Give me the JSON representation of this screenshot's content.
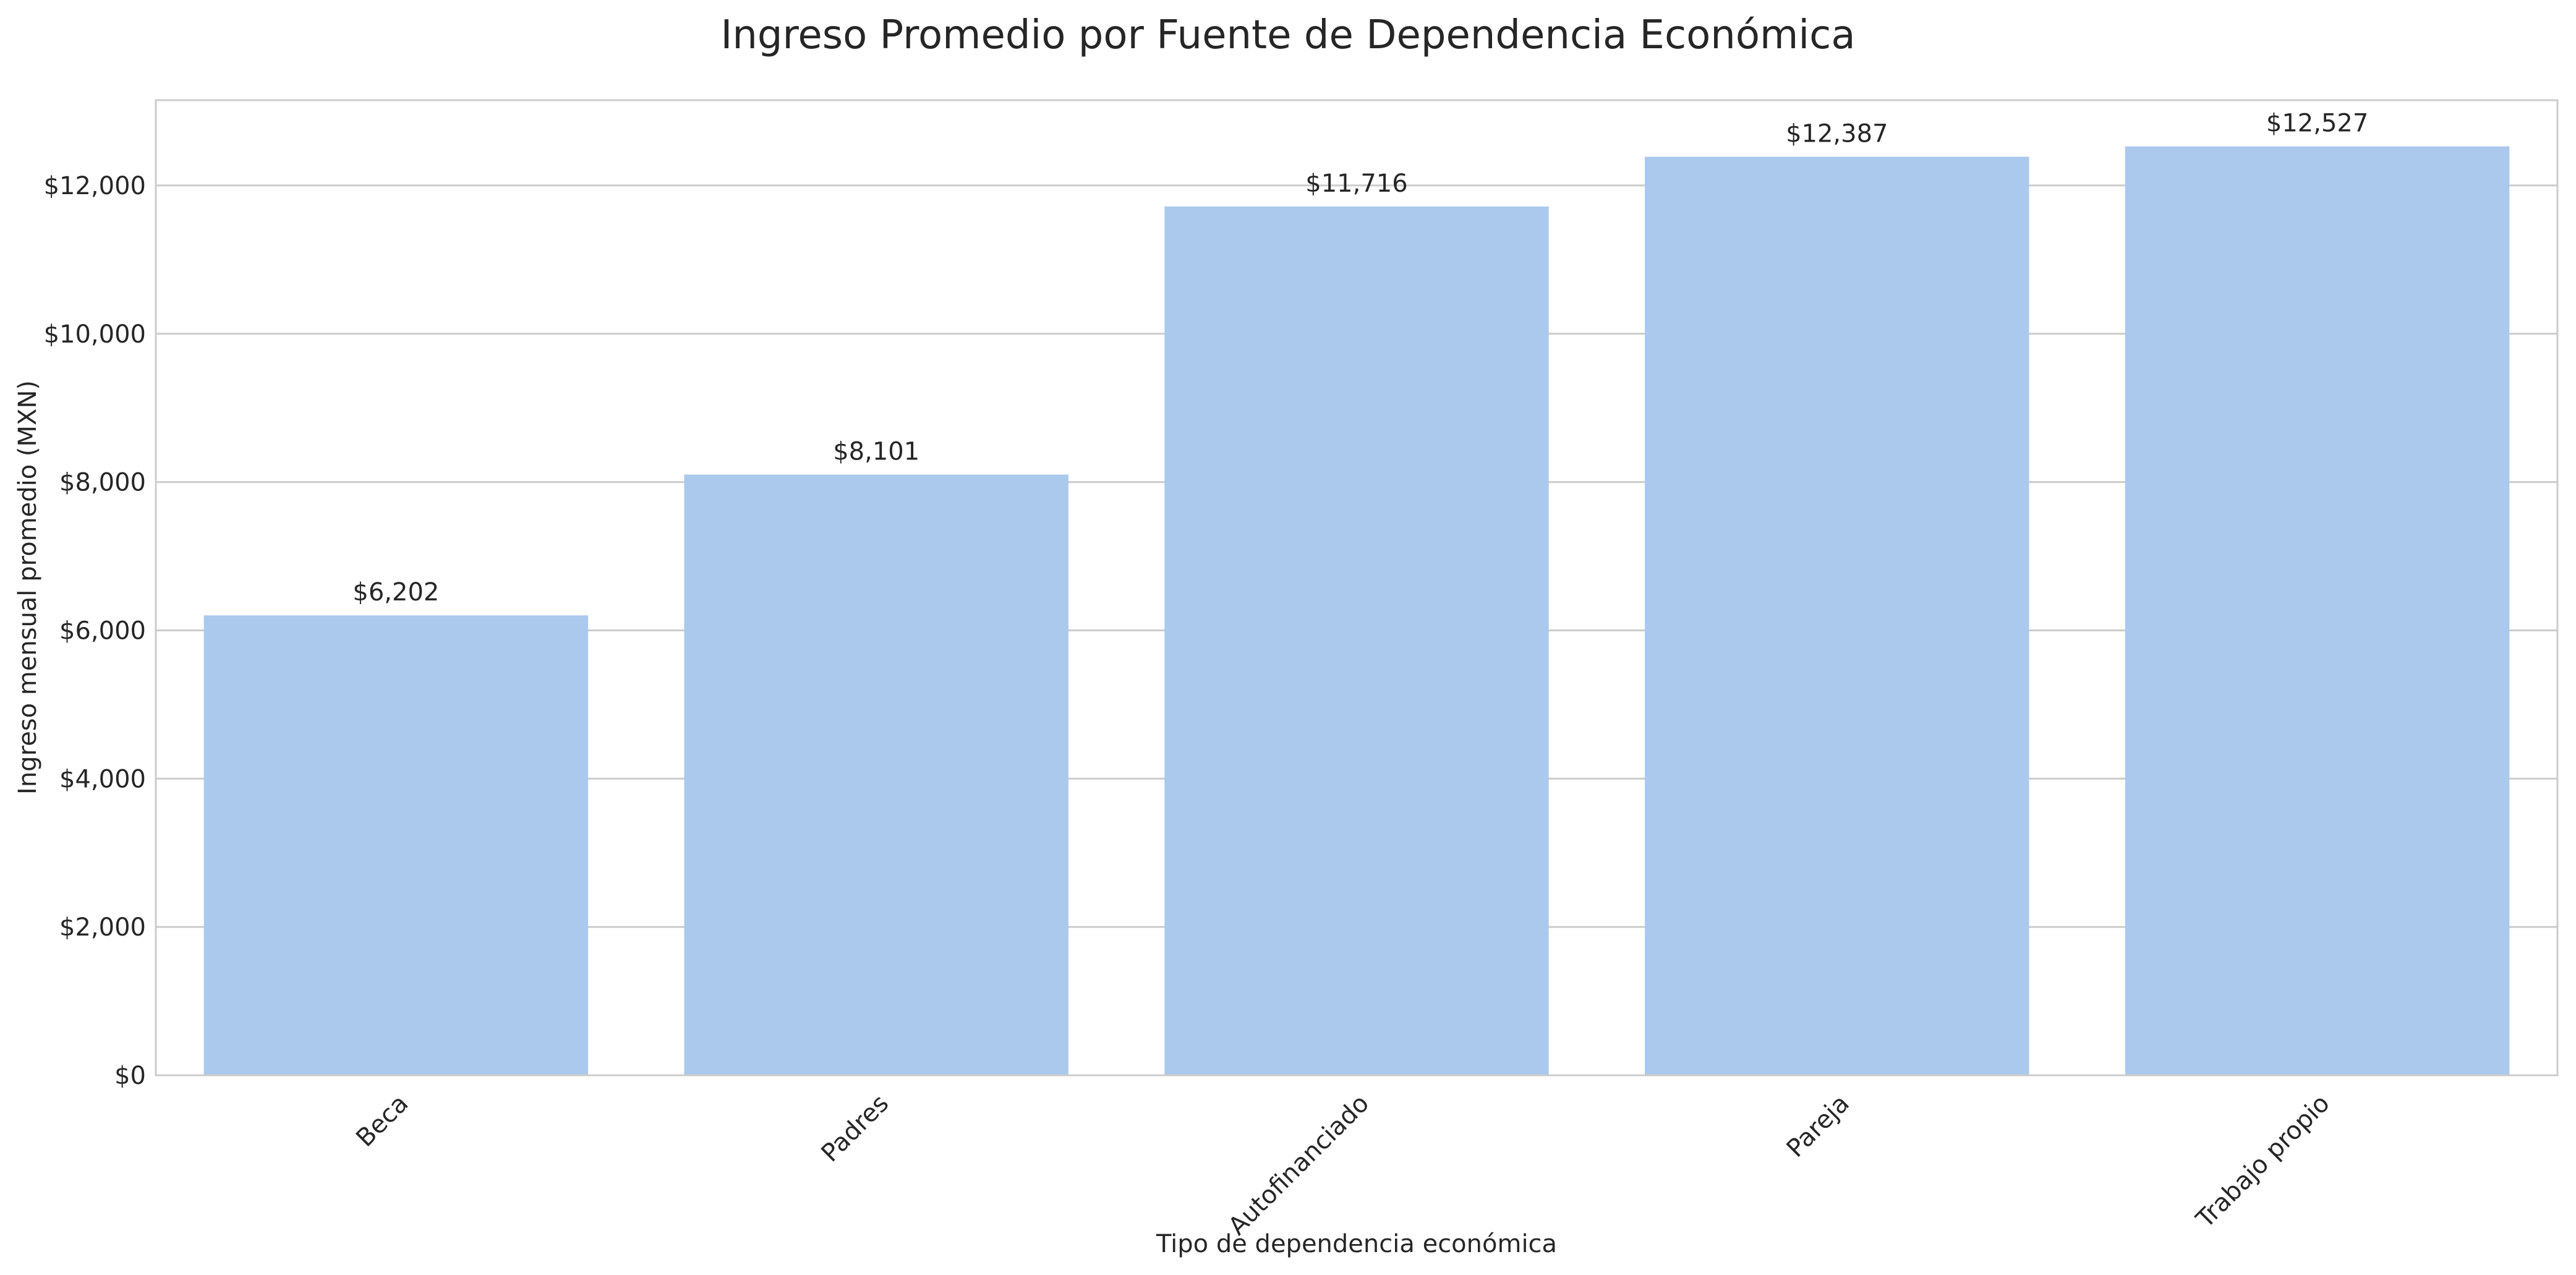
{
  "chart_data": {
    "type": "bar",
    "title": "Ingreso Promedio por Fuente de Dependencia Económica",
    "xlabel": "Tipo de dependencia económica",
    "ylabel": "Ingreso mensual promedio (MXN)",
    "categories": [
      "Beca",
      "Padres",
      "Autofinanciado",
      "Pareja",
      "Trabajo propio"
    ],
    "values": [
      6202,
      8101,
      11716,
      12387,
      12527
    ],
    "data_labels": [
      "$6,202",
      "$8,101",
      "$11,716",
      "$12,387",
      "$12,527"
    ],
    "ylim": [
      0,
      13150
    ],
    "yticks": [
      0,
      2000,
      4000,
      6000,
      8000,
      10000,
      12000
    ],
    "ytick_labels": [
      "$0",
      "$2,000",
      "$4,000",
      "$6,000",
      "$8,000",
      "$10,000",
      "$12,000"
    ],
    "grid": "horizontal",
    "legend": "none",
    "colors": {
      "bar": "#abc9ec",
      "grid": "#cccccc",
      "text": "#262626"
    }
  }
}
